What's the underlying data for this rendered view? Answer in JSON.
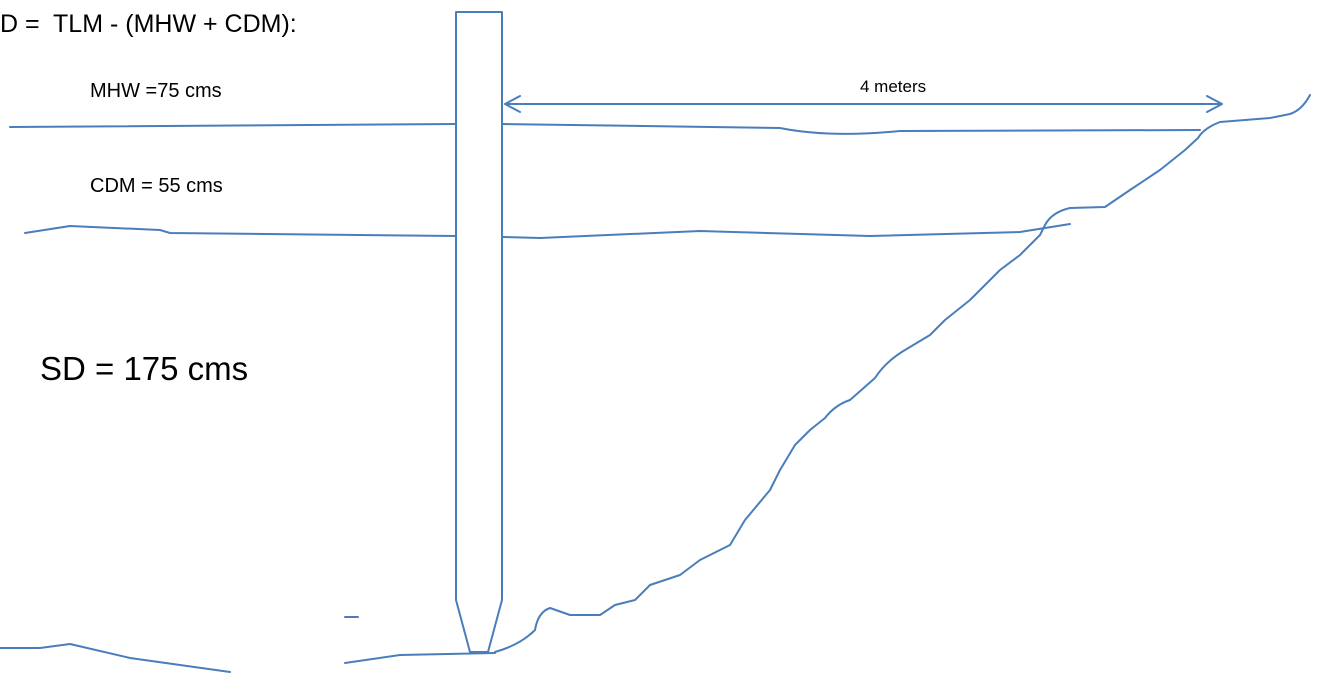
{
  "formula": "D =  TLM - (MHW + CDM):",
  "mhw_label": "MHW =75 cms",
  "distance_label": "4 meters",
  "cdm_label": "CDM = 55 cms",
  "sd_label": "SD = 175 cms"
}
